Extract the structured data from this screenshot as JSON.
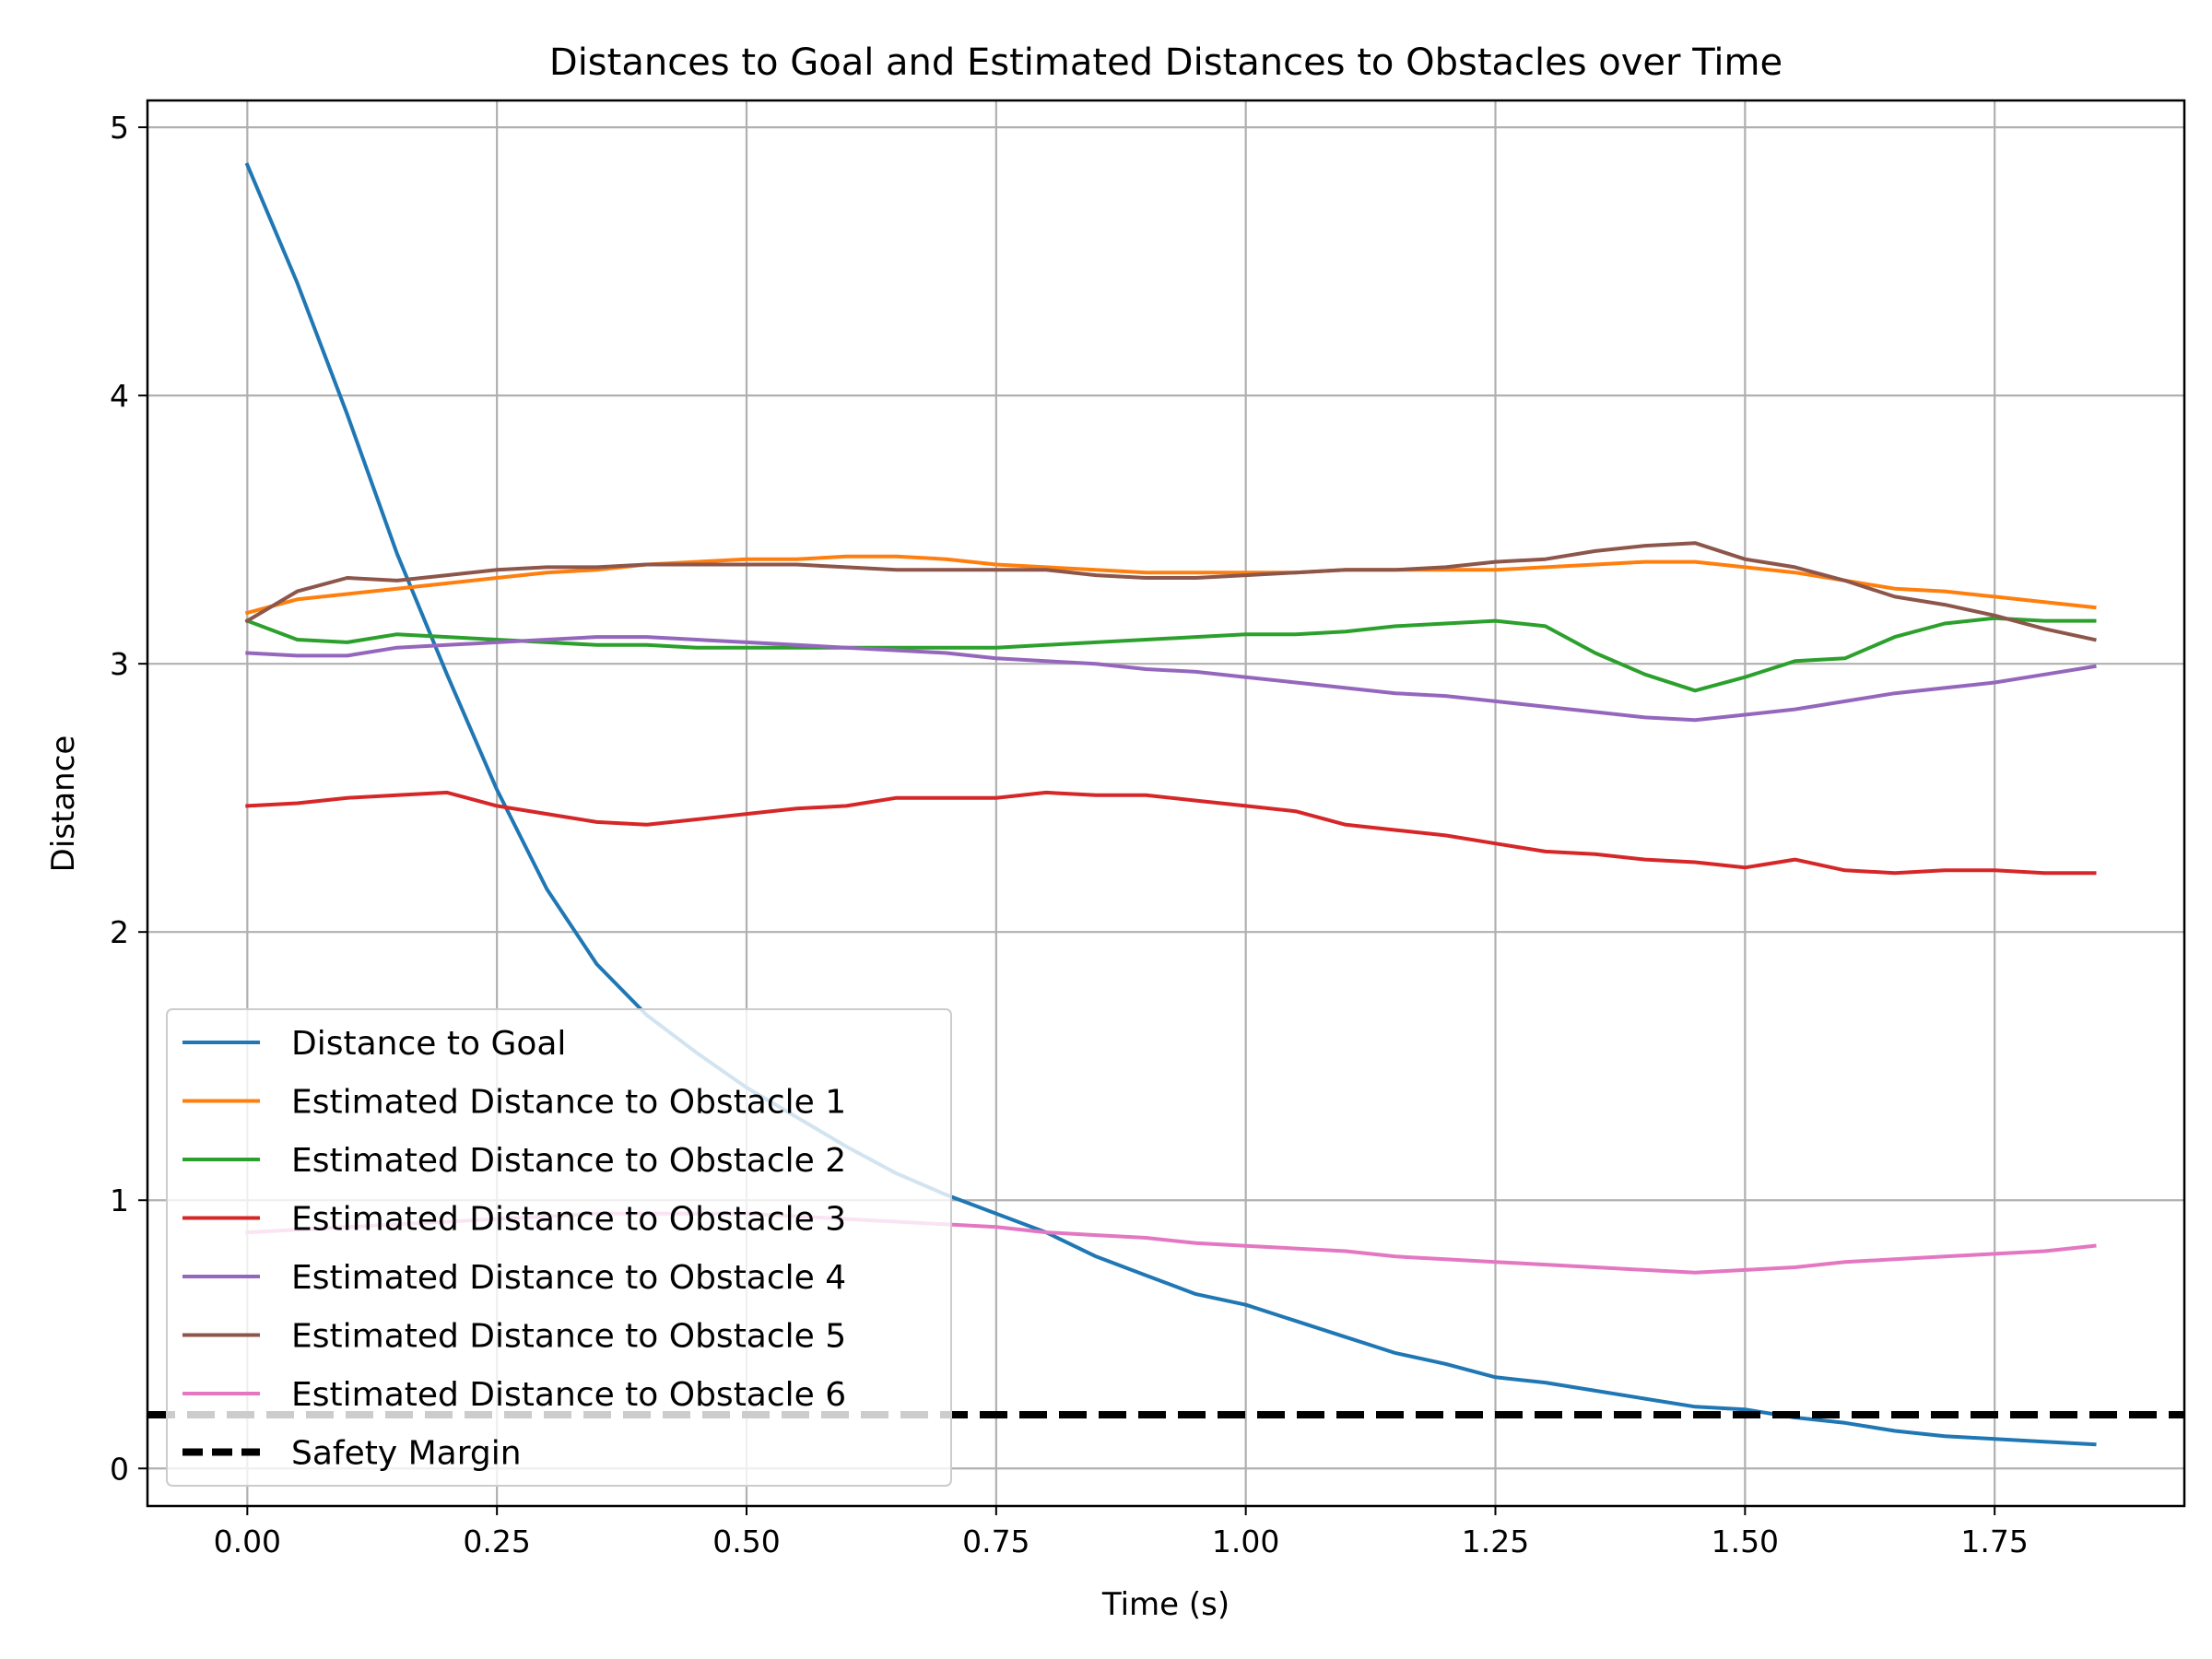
{
  "chart_data": {
    "type": "line",
    "title": "Distances to Goal and Estimated Distances to Obstacles over Time",
    "xlabel": "Time (s)",
    "ylabel": "Distance",
    "xlim": [
      -0.1,
      1.94
    ],
    "ylim": [
      -0.14,
      5.1
    ],
    "xticks": [
      0.0,
      0.25,
      0.5,
      0.75,
      1.0,
      1.25,
      1.5,
      1.75
    ],
    "xtick_labels": [
      "0.00",
      "0.25",
      "0.50",
      "0.75",
      "1.00",
      "1.25",
      "1.50",
      "1.75"
    ],
    "yticks": [
      0,
      1,
      2,
      3,
      4,
      5
    ],
    "ytick_labels": [
      "0",
      "1",
      "2",
      "3",
      "4",
      "5"
    ],
    "grid": true,
    "legend_position": "lower-left",
    "x": [
      0.0,
      0.05,
      0.1,
      0.15,
      0.2,
      0.25,
      0.3,
      0.35,
      0.4,
      0.45,
      0.5,
      0.55,
      0.6,
      0.65,
      0.7,
      0.75,
      0.8,
      0.85,
      0.9,
      0.95,
      1.0,
      1.05,
      1.1,
      1.15,
      1.2,
      1.25,
      1.3,
      1.35,
      1.4,
      1.45,
      1.5,
      1.55,
      1.6,
      1.65,
      1.7,
      1.75,
      1.8,
      1.85
    ],
    "series": [
      {
        "name": "Distance to Goal",
        "color": "#1f77b4",
        "style": "solid",
        "values": [
          4.86,
          4.42,
          3.93,
          3.41,
          2.96,
          2.53,
          2.16,
          1.88,
          1.69,
          1.55,
          1.42,
          1.31,
          1.2,
          1.1,
          1.02,
          0.95,
          0.88,
          0.79,
          0.72,
          0.65,
          0.61,
          0.55,
          0.49,
          0.43,
          0.39,
          0.34,
          0.32,
          0.29,
          0.26,
          0.23,
          0.22,
          0.19,
          0.17,
          0.14,
          0.12,
          0.11,
          0.1,
          0.09
        ]
      },
      {
        "name": "Estimated Distance to Obstacle 1",
        "color": "#ff7f0e",
        "style": "solid",
        "values": [
          3.19,
          3.24,
          3.26,
          3.28,
          3.3,
          3.32,
          3.34,
          3.35,
          3.37,
          3.38,
          3.39,
          3.39,
          3.4,
          3.4,
          3.39,
          3.37,
          3.36,
          3.35,
          3.34,
          3.34,
          3.34,
          3.34,
          3.35,
          3.35,
          3.35,
          3.35,
          3.36,
          3.37,
          3.38,
          3.38,
          3.36,
          3.34,
          3.31,
          3.28,
          3.27,
          3.25,
          3.23,
          3.21
        ]
      },
      {
        "name": "Estimated Distance to Obstacle 2",
        "color": "#2ca02c",
        "style": "solid",
        "values": [
          3.16,
          3.09,
          3.08,
          3.11,
          3.1,
          3.09,
          3.08,
          3.07,
          3.07,
          3.06,
          3.06,
          3.06,
          3.06,
          3.06,
          3.06,
          3.06,
          3.07,
          3.08,
          3.09,
          3.1,
          3.11,
          3.11,
          3.12,
          3.14,
          3.15,
          3.16,
          3.14,
          3.04,
          2.96,
          2.9,
          2.95,
          3.01,
          3.02,
          3.1,
          3.15,
          3.17,
          3.16,
          3.16
        ]
      },
      {
        "name": "Estimated Distance to Obstacle 3",
        "color": "#d62728",
        "style": "solid",
        "values": [
          2.47,
          2.48,
          2.5,
          2.51,
          2.52,
          2.47,
          2.44,
          2.41,
          2.4,
          2.42,
          2.44,
          2.46,
          2.47,
          2.5,
          2.5,
          2.5,
          2.52,
          2.51,
          2.51,
          2.49,
          2.47,
          2.45,
          2.4,
          2.38,
          2.36,
          2.33,
          2.3,
          2.29,
          2.27,
          2.26,
          2.24,
          2.27,
          2.23,
          2.22,
          2.23,
          2.23,
          2.22,
          2.22
        ]
      },
      {
        "name": "Estimated Distance to Obstacle 4",
        "color": "#9467bd",
        "style": "solid",
        "values": [
          3.04,
          3.03,
          3.03,
          3.06,
          3.07,
          3.08,
          3.09,
          3.1,
          3.1,
          3.09,
          3.08,
          3.07,
          3.06,
          3.05,
          3.04,
          3.02,
          3.01,
          3.0,
          2.98,
          2.97,
          2.95,
          2.93,
          2.91,
          2.89,
          2.88,
          2.86,
          2.84,
          2.82,
          2.8,
          2.79,
          2.81,
          2.83,
          2.86,
          2.89,
          2.91,
          2.93,
          2.96,
          2.99
        ]
      },
      {
        "name": "Estimated Distance to Obstacle 5",
        "color": "#8c564b",
        "style": "solid",
        "values": [
          3.16,
          3.27,
          3.32,
          3.31,
          3.33,
          3.35,
          3.36,
          3.36,
          3.37,
          3.37,
          3.37,
          3.37,
          3.36,
          3.35,
          3.35,
          3.35,
          3.35,
          3.33,
          3.32,
          3.32,
          3.33,
          3.34,
          3.35,
          3.35,
          3.36,
          3.38,
          3.39,
          3.42,
          3.44,
          3.45,
          3.39,
          3.36,
          3.31,
          3.25,
          3.22,
          3.18,
          3.13,
          3.09
        ]
      },
      {
        "name": "Estimated Distance to Obstacle 6",
        "color": "#e377c2",
        "style": "solid",
        "values": [
          0.88,
          0.89,
          0.9,
          0.91,
          0.92,
          0.93,
          0.94,
          0.95,
          0.95,
          0.95,
          0.95,
          0.94,
          0.93,
          0.92,
          0.91,
          0.9,
          0.88,
          0.87,
          0.86,
          0.84,
          0.83,
          0.82,
          0.81,
          0.79,
          0.78,
          0.77,
          0.76,
          0.75,
          0.74,
          0.73,
          0.74,
          0.75,
          0.77,
          0.78,
          0.79,
          0.8,
          0.81,
          0.83
        ]
      }
    ],
    "reference_lines": [
      {
        "name": "Safety Margin",
        "y": 0.2,
        "color": "#000000",
        "style": "dashed"
      }
    ]
  }
}
